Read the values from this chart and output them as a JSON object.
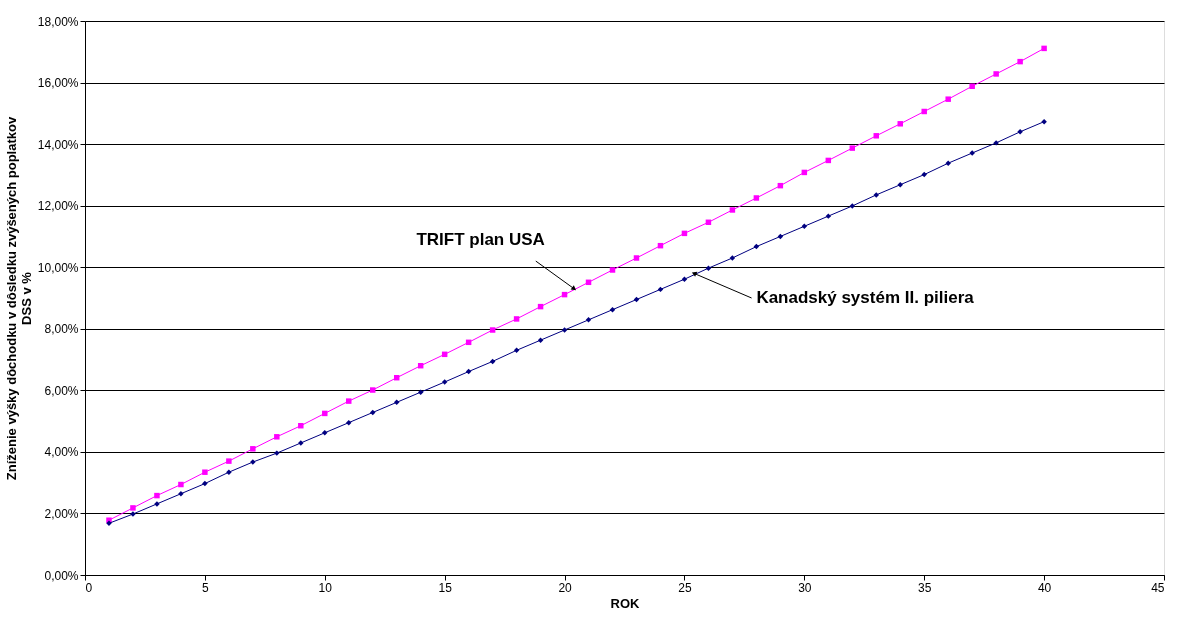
{
  "chart_data": {
    "type": "line",
    "xlabel": "ROK",
    "ylabel": "Zníženie výšky dôchodku v dôsledku zvýšených poplatkov\nDSS v %",
    "x": [
      1,
      2,
      3,
      4,
      5,
      6,
      7,
      8,
      9,
      10,
      11,
      12,
      13,
      14,
      15,
      16,
      17,
      18,
      19,
      20,
      21,
      22,
      23,
      24,
      25,
      26,
      27,
      28,
      29,
      30,
      31,
      32,
      33,
      34,
      35,
      36,
      37,
      38,
      39,
      40
    ],
    "series": [
      {
        "color": "#ff00ff",
        "marker": "square",
        "values": [
          1.78,
          2.18,
          2.58,
          2.94,
          3.34,
          3.7,
          4.1,
          4.49,
          4.85,
          5.25,
          5.65,
          6.01,
          6.41,
          6.8,
          7.17,
          7.56,
          7.96,
          8.32,
          8.72,
          9.11,
          9.51,
          9.91,
          10.3,
          10.7,
          11.1,
          11.46,
          11.86,
          12.25,
          12.65,
          13.08,
          13.47,
          13.87,
          14.27,
          14.66,
          15.06,
          15.46,
          15.88,
          16.28,
          16.68,
          17.11
        ]
      },
      {
        "color": "#000080",
        "marker": "diamond",
        "values": [
          1.68,
          1.98,
          2.31,
          2.64,
          2.97,
          3.34,
          3.67,
          3.96,
          4.29,
          4.62,
          4.95,
          5.28,
          5.61,
          5.94,
          6.27,
          6.61,
          6.94,
          7.3,
          7.63,
          7.96,
          8.29,
          8.62,
          8.95,
          9.28,
          9.61,
          9.97,
          10.3,
          10.67,
          11.0,
          11.33,
          11.66,
          11.99,
          12.35,
          12.68,
          13.01,
          13.38,
          13.71,
          14.04,
          14.4,
          14.73
        ]
      }
    ],
    "xlim": [
      0,
      45
    ],
    "xticks": [
      0,
      5,
      10,
      15,
      20,
      25,
      30,
      35,
      40,
      45
    ],
    "ylim": [
      0,
      18
    ],
    "yticks": [
      {
        "value": 0,
        "label": "0,00%"
      },
      {
        "value": 2,
        "label": "2,00%"
      },
      {
        "value": 4,
        "label": "4,00%"
      },
      {
        "value": 6,
        "label": "6,00%"
      },
      {
        "value": 8,
        "label": "8,00%"
      },
      {
        "value": 10,
        "label": "10,00%"
      },
      {
        "value": 12,
        "label": "12,00%"
      },
      {
        "value": 14,
        "label": "14,00%"
      },
      {
        "value": 16,
        "label": "16,00%"
      },
      {
        "value": 18,
        "label": "18,00%"
      }
    ],
    "grid": "y",
    "annotations": [
      {
        "text": "TRIFT plan USA",
        "x": 20.4,
        "y": 9.3
      },
      {
        "text": "Kanadský systém II. piliera",
        "x": 25.4,
        "y": 9.8
      }
    ]
  }
}
